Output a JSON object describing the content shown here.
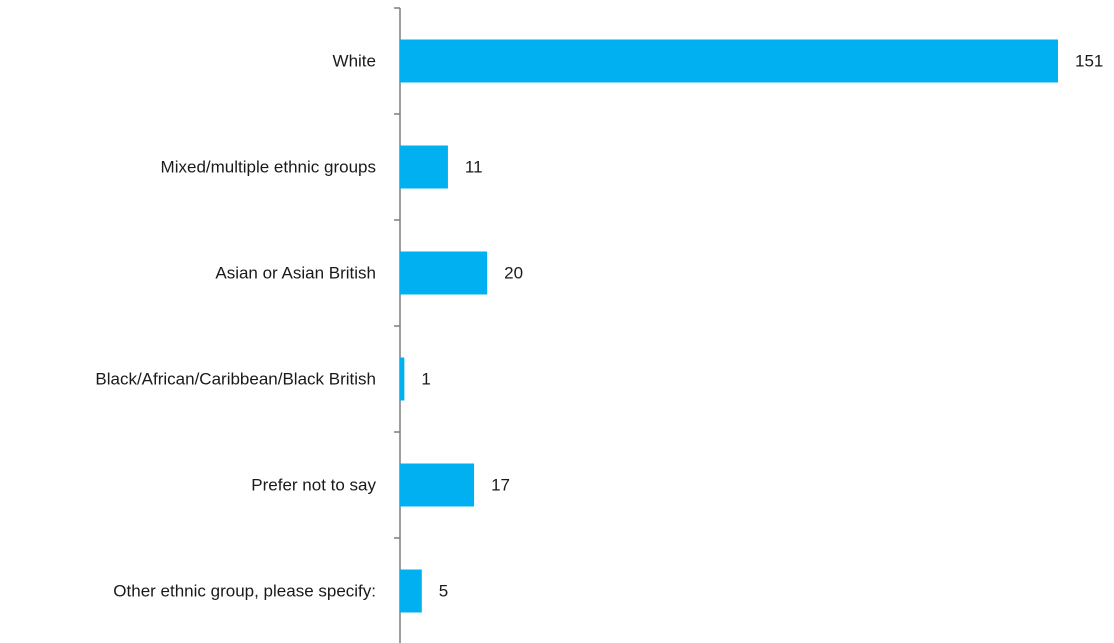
{
  "chart_data": {
    "type": "bar",
    "orientation": "horizontal",
    "categories": [
      "White",
      "Mixed/multiple ethnic groups",
      "Asian or Asian British",
      "Black/African/Caribbean/Black British",
      "Prefer not to say",
      "Other ethnic group, please specify:"
    ],
    "values": [
      151,
      11,
      20,
      1,
      17,
      5
    ],
    "value_labels": [
      "151",
      "11",
      "20",
      "1",
      "17",
      "5"
    ],
    "bar_color": "#00b0f0",
    "axis_color": "#7f7f7f",
    "xlim": [
      0,
      151
    ],
    "grid": false,
    "legend": "none"
  }
}
